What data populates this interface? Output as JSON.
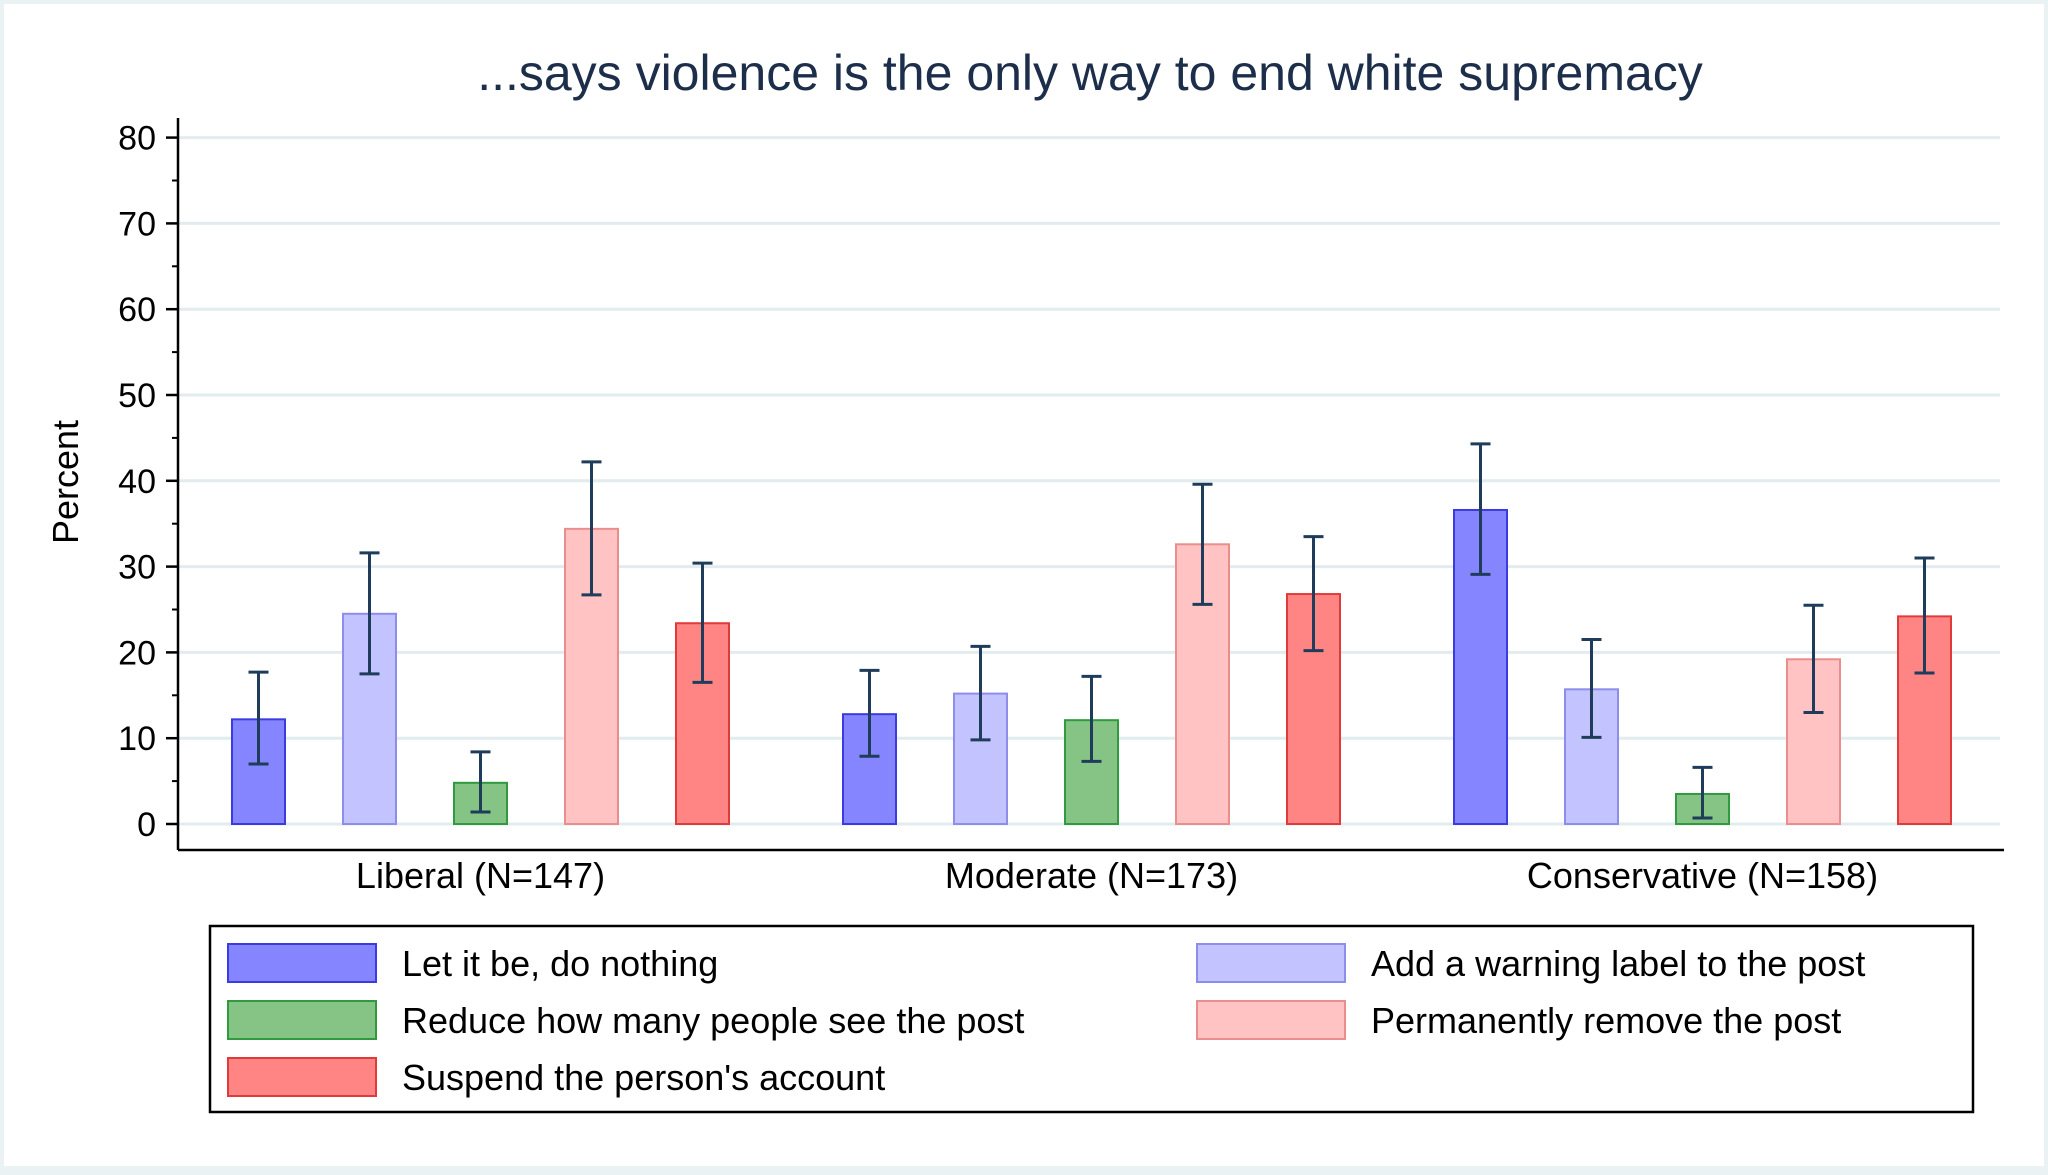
{
  "chart_data": {
    "type": "bar",
    "title": "...says violence is the only way to end white supremacy",
    "ylabel": "Percent",
    "xlabel": "",
    "ylim": [
      0,
      80
    ],
    "yticks": [
      0,
      10,
      20,
      30,
      40,
      50,
      60,
      70,
      80
    ],
    "grid": true,
    "legend_position": "bottom",
    "categories": [
      "Liberal (N=147)",
      "Moderate (N=173)",
      "Conservative (N=158)"
    ],
    "series": [
      {
        "name": "Let it be, do nothing",
        "color": "#8585ff",
        "stroke": "#3b3be0",
        "values": [
          12.2,
          12.8,
          36.6
        ],
        "ci_low": [
          7.0,
          7.9,
          29.1
        ],
        "ci_high": [
          17.7,
          17.9,
          44.3
        ]
      },
      {
        "name": "Add a warning label to the post",
        "color": "#c3c3ff",
        "stroke": "#8d8dec",
        "values": [
          24.5,
          15.2,
          15.7
        ],
        "ci_low": [
          17.5,
          9.8,
          10.1
        ],
        "ci_high": [
          31.6,
          20.7,
          21.5
        ]
      },
      {
        "name": "Reduce how many people see the post",
        "color": "#86c486",
        "stroke": "#2f9b3e",
        "values": [
          4.8,
          12.1,
          3.5
        ],
        "ci_low": [
          1.4,
          7.3,
          0.7
        ],
        "ci_high": [
          8.4,
          17.2,
          6.6
        ]
      },
      {
        "name": "Permanently remove the post",
        "color": "#ffc3c3",
        "stroke": "#ec8d8d",
        "values": [
          34.4,
          32.6,
          19.2
        ],
        "ci_low": [
          26.7,
          25.6,
          13.0
        ],
        "ci_high": [
          42.2,
          39.6,
          25.5
        ]
      },
      {
        "name": "Suspend the person's account",
        "color": "#ff8585",
        "stroke": "#e03b3b",
        "values": [
          23.4,
          26.8,
          24.2
        ],
        "ci_low": [
          16.5,
          20.2,
          17.6
        ],
        "ci_high": [
          30.4,
          33.5,
          31.0
        ]
      }
    ],
    "colors": {
      "errorbar": "#1f3d5a",
      "title": "#1c2e4a",
      "grid": "#e2ecee",
      "background": "#eaf2f3",
      "plot_background": "#ffffff"
    }
  }
}
